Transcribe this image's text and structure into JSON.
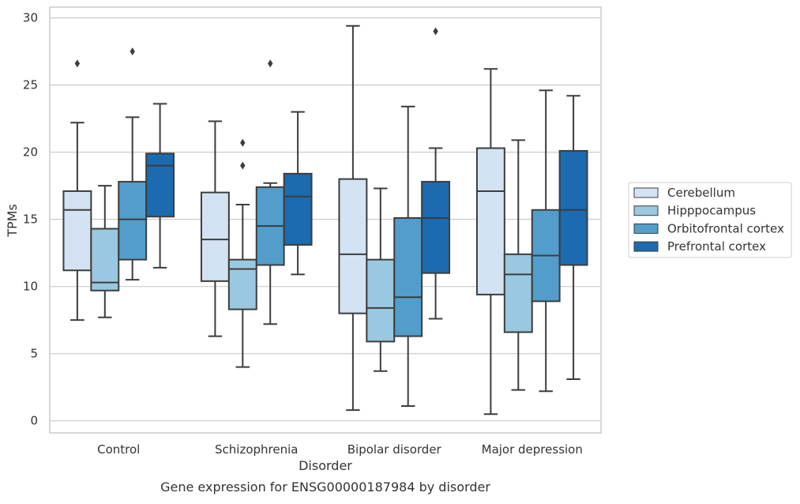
{
  "caption": "Gene expression for ENSG00000187984 by disorder",
  "chart_data": {
    "type": "box",
    "xlabel": "Disorder",
    "ylabel": "TPMs",
    "ylim": [
      -0.9,
      30.8
    ],
    "yticks": [
      "0",
      "5",
      "10",
      "15",
      "20",
      "25",
      "30"
    ],
    "grid": "horizontal",
    "legend_position": "right-center",
    "categories": [
      "Control",
      "Schizophrenia",
      "Bipolar disorder",
      "Major depression"
    ],
    "series": [
      {
        "name": "Cerebellum",
        "color": "#d3e3f3",
        "boxes": [
          {
            "whisker_low": 7.5,
            "q1": 11.2,
            "median": 15.7,
            "q3": 17.1,
            "whisker_high": 22.2,
            "outliers": [
              26.6
            ]
          },
          {
            "whisker_low": 6.3,
            "q1": 10.4,
            "median": 13.5,
            "q3": 17.0,
            "whisker_high": 22.3,
            "outliers": []
          },
          {
            "whisker_low": 0.8,
            "q1": 8.0,
            "median": 12.4,
            "q3": 18.0,
            "whisker_high": 29.4,
            "outliers": []
          },
          {
            "whisker_low": 0.5,
            "q1": 9.4,
            "median": 17.1,
            "q3": 20.3,
            "whisker_high": 26.2,
            "outliers": []
          }
        ]
      },
      {
        "name": "Hipppocampus",
        "color": "#9ac8e0",
        "boxes": [
          {
            "whisker_low": 7.7,
            "q1": 9.7,
            "median": 10.3,
            "q3": 14.3,
            "whisker_high": 17.5,
            "outliers": []
          },
          {
            "whisker_low": 4.0,
            "q1": 8.3,
            "median": 11.3,
            "q3": 12.0,
            "whisker_high": 16.1,
            "outliers": [
              19.0,
              20.7
            ]
          },
          {
            "whisker_low": 3.7,
            "q1": 5.9,
            "median": 8.4,
            "q3": 12.0,
            "whisker_high": 17.3,
            "outliers": []
          },
          {
            "whisker_low": 2.3,
            "q1": 6.6,
            "median": 10.9,
            "q3": 12.4,
            "whisker_high": 20.9,
            "outliers": []
          }
        ]
      },
      {
        "name": "Orbitofrontal cortex",
        "color": "#529dcc",
        "boxes": [
          {
            "whisker_low": 10.5,
            "q1": 12.0,
            "median": 15.0,
            "q3": 17.8,
            "whisker_high": 22.6,
            "outliers": [
              27.5
            ]
          },
          {
            "whisker_low": 7.2,
            "q1": 11.6,
            "median": 14.5,
            "q3": 17.4,
            "whisker_high": 17.7,
            "outliers": [
              26.6
            ]
          },
          {
            "whisker_low": 1.1,
            "q1": 6.3,
            "median": 9.2,
            "q3": 15.1,
            "whisker_high": 23.4,
            "outliers": []
          },
          {
            "whisker_low": 2.2,
            "q1": 8.9,
            "median": 12.3,
            "q3": 15.7,
            "whisker_high": 24.6,
            "outliers": []
          }
        ]
      },
      {
        "name": "Prefrontal cortex",
        "color": "#1c6aaf",
        "boxes": [
          {
            "whisker_low": 11.4,
            "q1": 15.2,
            "median": 19.0,
            "q3": 19.9,
            "whisker_high": 23.6,
            "outliers": []
          },
          {
            "whisker_low": 10.9,
            "q1": 13.1,
            "median": 16.7,
            "q3": 18.4,
            "whisker_high": 23.0,
            "outliers": []
          },
          {
            "whisker_low": 7.6,
            "q1": 11.0,
            "median": 15.1,
            "q3": 17.8,
            "whisker_high": 20.3,
            "outliers": [
              29.0
            ]
          },
          {
            "whisker_low": 3.1,
            "q1": 11.6,
            "median": 15.7,
            "q3": 20.1,
            "whisker_high": 24.2,
            "outliers": []
          }
        ]
      }
    ]
  }
}
